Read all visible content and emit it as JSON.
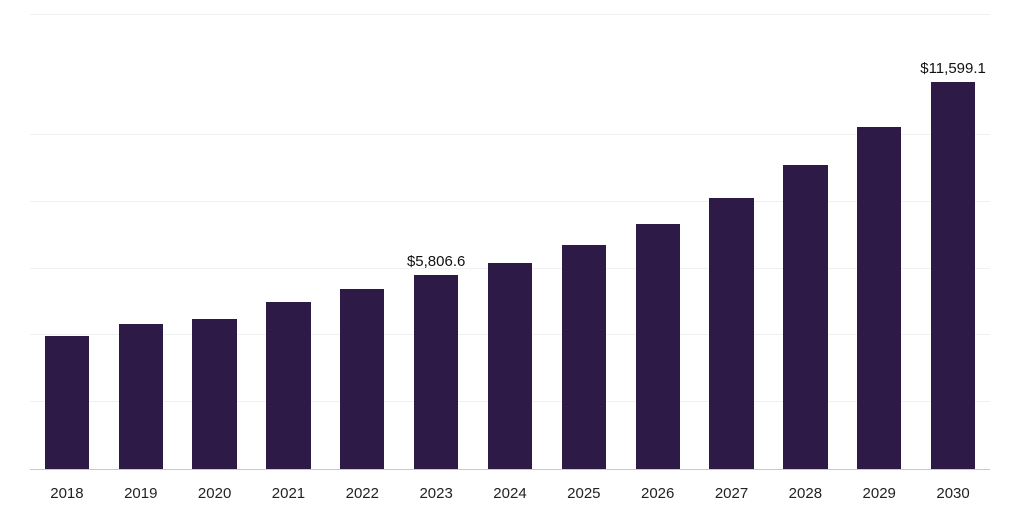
{
  "chart_data": {
    "type": "bar",
    "title": "",
    "xlabel": "",
    "ylabel": "",
    "categories": [
      "2018",
      "2019",
      "2020",
      "2021",
      "2022",
      "2023",
      "2024",
      "2025",
      "2026",
      "2027",
      "2028",
      "2029",
      "2030"
    ],
    "values": [
      3990,
      4330,
      4500,
      5010,
      5400,
      5806.6,
      6170,
      6700,
      7330,
      8130,
      9120,
      10250,
      11599.1
    ],
    "data_labels": {
      "2023": "$5,806.6",
      "2030": "$11,599.1"
    },
    "ylim": [
      0,
      13600
    ],
    "grid_interval": 2000,
    "grid": true,
    "legend": "none",
    "bar_color": "#2E1A47",
    "gridline_color": "#f0f0f0",
    "axis_line_color": "#c9c9c9"
  }
}
